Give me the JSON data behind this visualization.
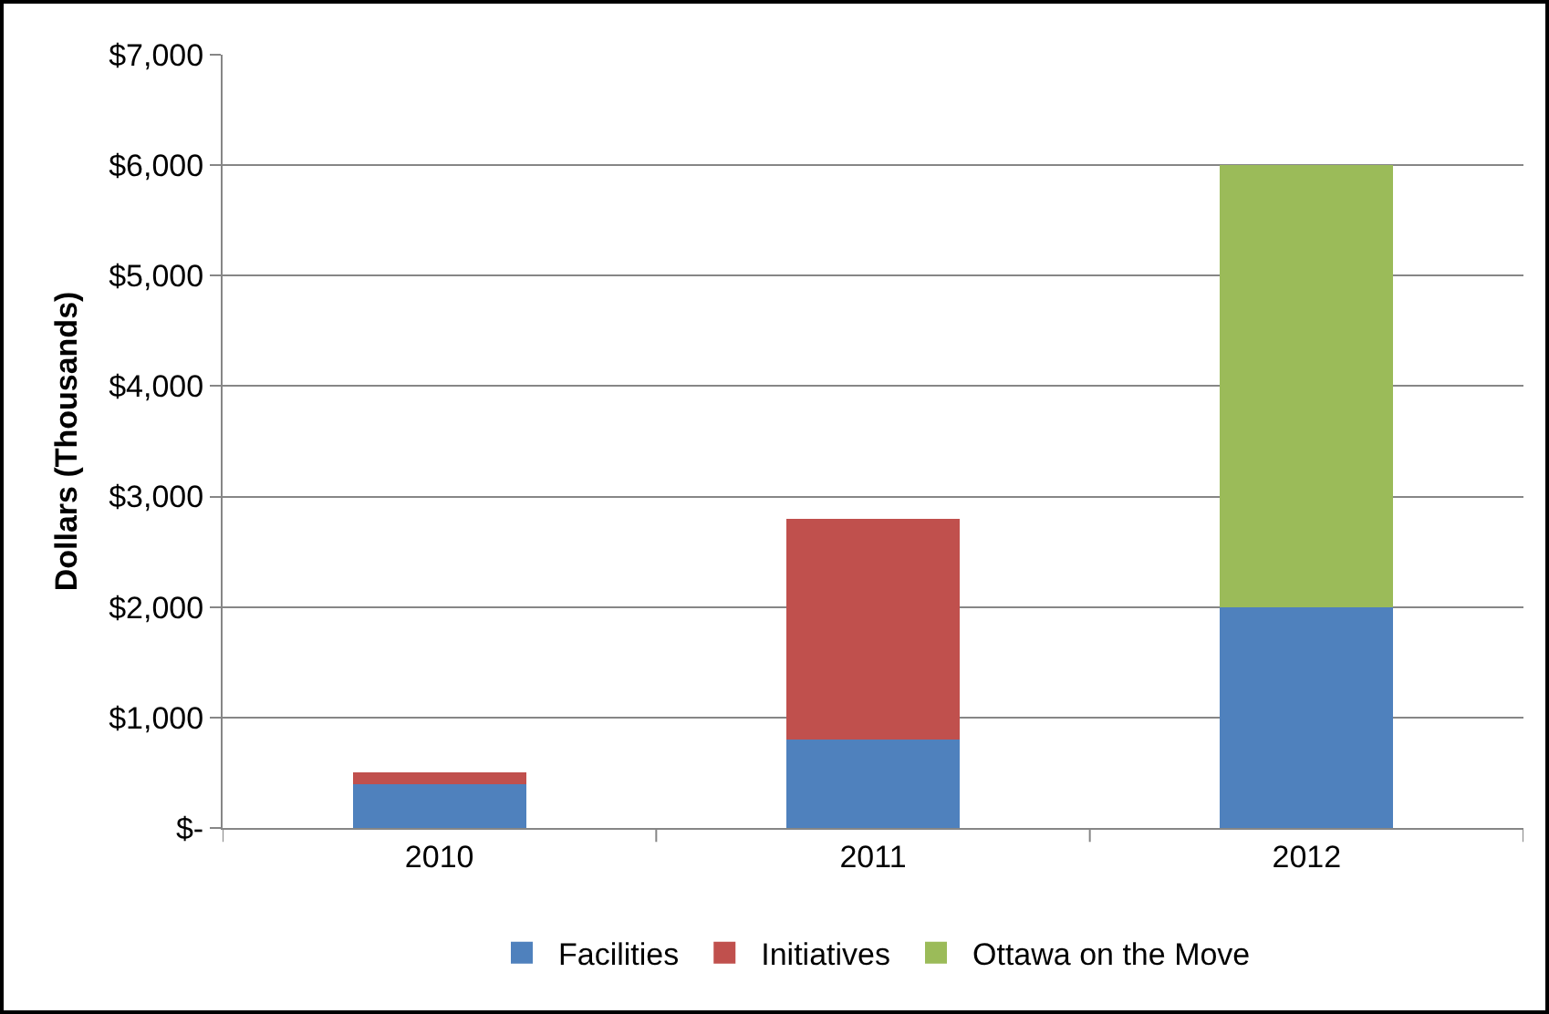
{
  "chart_data": {
    "type": "bar",
    "stacked": true,
    "ylabel": "Dollars (Thousands)",
    "categories": [
      "2010",
      "2011",
      "2012"
    ],
    "series": [
      {
        "name": "Facilities",
        "color": "#4f81bd",
        "values": [
          400,
          800,
          2000
        ]
      },
      {
        "name": "Initiatives",
        "color": "#c0504d",
        "values": [
          100,
          2000,
          null
        ]
      },
      {
        "name": "Ottawa on the Move",
        "color": "#9bbb59",
        "values": [
          null,
          null,
          4000
        ]
      }
    ],
    "ylim": [
      0,
      7000
    ],
    "yticks": [
      {
        "value": 0,
        "label": "$-"
      },
      {
        "value": 1000,
        "label": "$1,000"
      },
      {
        "value": 2000,
        "label": "$2,000"
      },
      {
        "value": 3000,
        "label": "$3,000"
      },
      {
        "value": 4000,
        "label": "$4,000"
      },
      {
        "value": 5000,
        "label": "$5,000"
      },
      {
        "value": 6000,
        "label": "$6,000"
      },
      {
        "value": 7000,
        "label": "$7,000"
      }
    ],
    "grid": "y",
    "legend": "bottom"
  }
}
